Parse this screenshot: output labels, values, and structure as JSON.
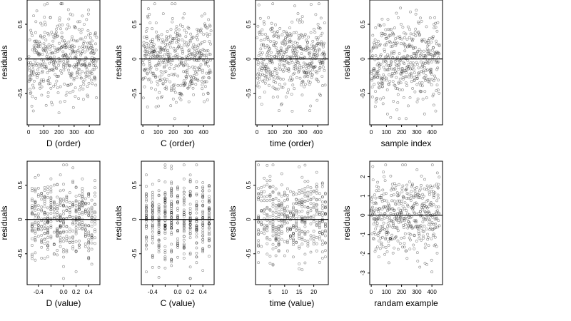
{
  "chart_data": [
    {
      "type": "scatter",
      "id": "d-order",
      "xlabel": "D (order)",
      "ylabel": "residuals",
      "xlim": [
        -10,
        470
      ],
      "ylim": [
        -0.95,
        0.85
      ],
      "xticks": [
        0,
        100,
        200,
        300,
        400
      ],
      "yticks": [
        -0.5,
        0,
        0.5
      ],
      "generator": "index",
      "yscale": 0.3,
      "n": 450
    },
    {
      "type": "scatter",
      "id": "c-order",
      "xlabel": "C (order)",
      "ylabel": "residuals",
      "xlim": [
        -10,
        470
      ],
      "ylim": [
        -0.95,
        0.85
      ],
      "xticks": [
        0,
        100,
        200,
        300,
        400
      ],
      "yticks": [
        -0.5,
        0,
        0.5
      ],
      "generator": "index",
      "yscale": 0.3,
      "n": 450
    },
    {
      "type": "scatter",
      "id": "time-order",
      "xlabel": "time (order)",
      "ylabel": "residuals",
      "xlim": [
        -10,
        470
      ],
      "ylim": [
        -0.95,
        0.85
      ],
      "xticks": [
        0,
        100,
        200,
        300,
        400
      ],
      "yticks": [
        -0.5,
        0,
        0.5
      ],
      "generator": "index",
      "yscale": 0.3,
      "n": 450
    },
    {
      "type": "scatter",
      "id": "sample-index",
      "xlabel": "sample index",
      "ylabel": "residuals",
      "xlim": [
        -10,
        470
      ],
      "ylim": [
        -0.95,
        0.85
      ],
      "xticks": [
        0,
        100,
        200,
        300,
        400
      ],
      "yticks": [
        -0.5,
        0,
        0.5
      ],
      "generator": "index",
      "yscale": 0.3,
      "n": 450
    },
    {
      "type": "scatter",
      "id": "d-value",
      "xlabel": "D (value)",
      "ylabel": "residuals",
      "xlim": [
        -0.58,
        0.58
      ],
      "ylim": [
        -0.95,
        0.85
      ],
      "xticks": [
        -0.4,
        -0.2,
        0.0,
        0.2,
        0.4
      ],
      "xticklabels": [
        "-0.4",
        "",
        "0.0",
        "0.2",
        "0.4"
      ],
      "yticks": [
        -0.5,
        0,
        0.5
      ],
      "generator": "levels",
      "levels": [
        -0.5,
        -0.45,
        -0.4,
        -0.35,
        -0.3,
        -0.25,
        -0.2,
        -0.15,
        -0.1,
        -0.05,
        0.0,
        0.05,
        0.1,
        0.15,
        0.2,
        0.25,
        0.3,
        0.35,
        0.4,
        0.45,
        0.5
      ],
      "yscale": 0.3,
      "n": 450
    },
    {
      "type": "scatter",
      "id": "c-value",
      "xlabel": "C (value)",
      "ylabel": "residuals",
      "xlim": [
        -0.58,
        0.58
      ],
      "ylim": [
        -0.95,
        0.85
      ],
      "xticks": [
        -0.4,
        -0.2,
        0.0,
        0.2,
        0.4
      ],
      "xticklabels": [
        "-0.4",
        "",
        "0.0",
        "0.2",
        "0.4"
      ],
      "yticks": [
        -0.5,
        0,
        0.5
      ],
      "generator": "levels",
      "levels": [
        -0.5,
        -0.4,
        -0.3,
        -0.2,
        -0.1,
        0.0,
        0.1,
        0.2,
        0.3,
        0.4,
        0.5
      ],
      "yscale": 0.3,
      "n": 450
    },
    {
      "type": "scatter",
      "id": "time-value",
      "xlabel": "time (value)",
      "ylabel": "residuals",
      "xlim": [
        0,
        25
      ],
      "ylim": [
        -0.95,
        0.85
      ],
      "xticks": [
        5,
        10,
        15,
        20
      ],
      "yticks": [
        -0.5,
        0,
        0.5
      ],
      "generator": "levels",
      "levels": [
        1,
        2,
        3,
        4,
        5,
        6,
        7,
        8,
        9,
        10,
        11,
        12,
        13,
        14,
        15,
        16,
        17,
        18,
        19,
        20,
        21,
        22,
        23,
        24
      ],
      "yscale": 0.3,
      "n": 450
    },
    {
      "type": "scatter",
      "id": "random-example",
      "xlabel": "randam example",
      "ylabel": "residuals",
      "xlim": [
        -10,
        470
      ],
      "ylim": [
        -3.6,
        2.8
      ],
      "xticks": [
        0,
        100,
        200,
        300,
        400
      ],
      "yticks": [
        -3,
        -2,
        -1,
        0,
        1,
        2
      ],
      "generator": "index",
      "yscale": 1.0,
      "n": 450
    }
  ]
}
